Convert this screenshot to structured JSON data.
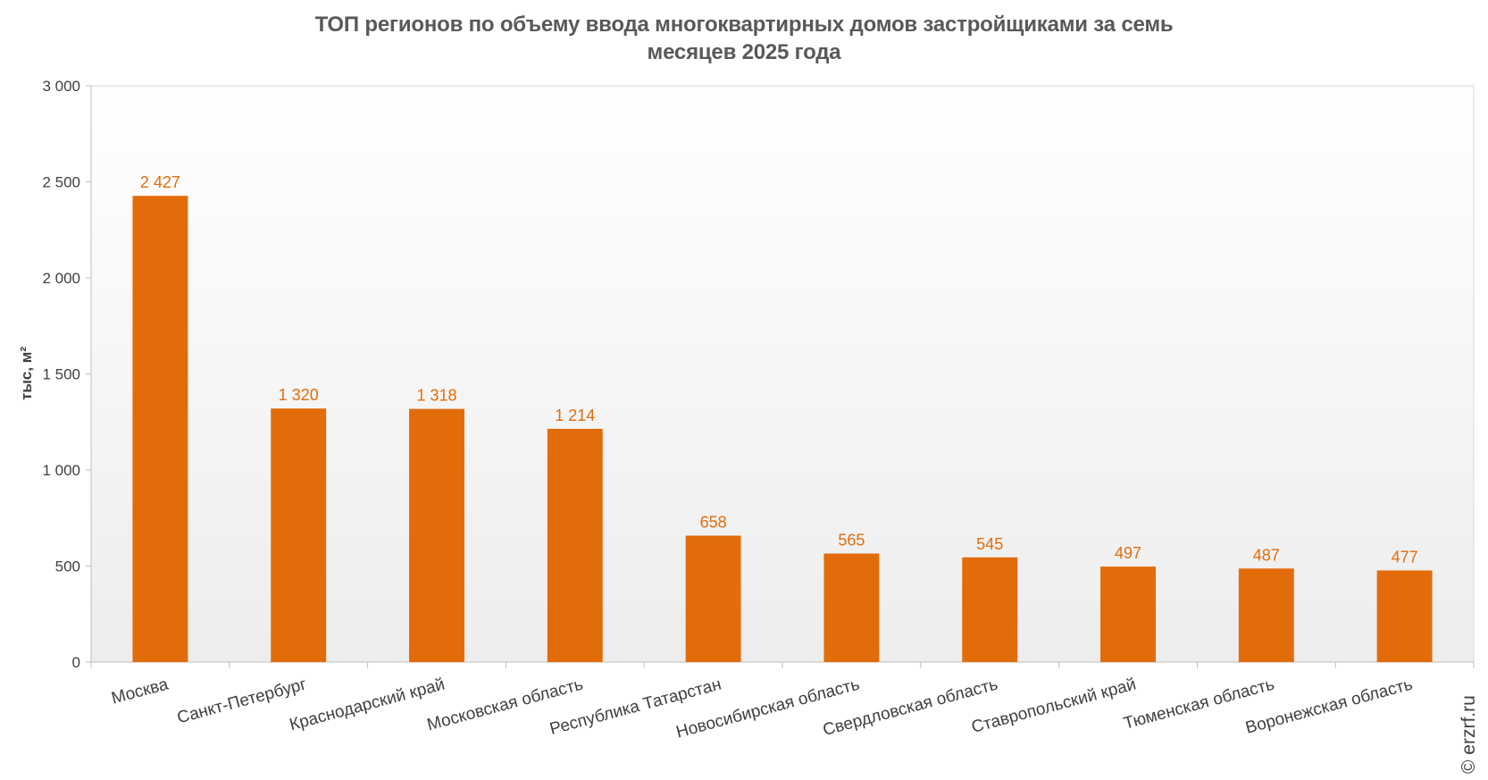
{
  "chart_data": {
    "type": "bar",
    "title_lines": [
      "ТОП регионов по объему ввода многоквартирных домов застройщиками за семь",
      "месяцев 2025 года"
    ],
    "ylabel": "тыс, м²",
    "xlabel": "",
    "categories": [
      "Москва",
      "Санкт-Петербург",
      "Краснодарский край",
      "Московская область",
      "Республика Татарстан",
      "Новосибирская область",
      "Свердловская область",
      "Ставропольский край",
      "Тюменская область",
      "Воронежская область"
    ],
    "values": [
      2427,
      1320,
      1318,
      1214,
      658,
      565,
      545,
      497,
      487,
      477
    ],
    "value_labels": [
      "2 427",
      "1 320",
      "1 318",
      "1 214",
      "658",
      "565",
      "545",
      "497",
      "487",
      "477"
    ],
    "ylim": [
      0,
      3000
    ],
    "yticks": [
      0,
      500,
      1000,
      1500,
      2000,
      2500,
      3000
    ],
    "ytick_labels": [
      "0",
      "500",
      "1 000",
      "1 500",
      "2 000",
      "2 500",
      "3 000"
    ],
    "bar_color": "#e36c0a",
    "label_color": "#e36c0a",
    "grid": false,
    "legend": "none"
  },
  "watermark": "© erzrf.ru"
}
